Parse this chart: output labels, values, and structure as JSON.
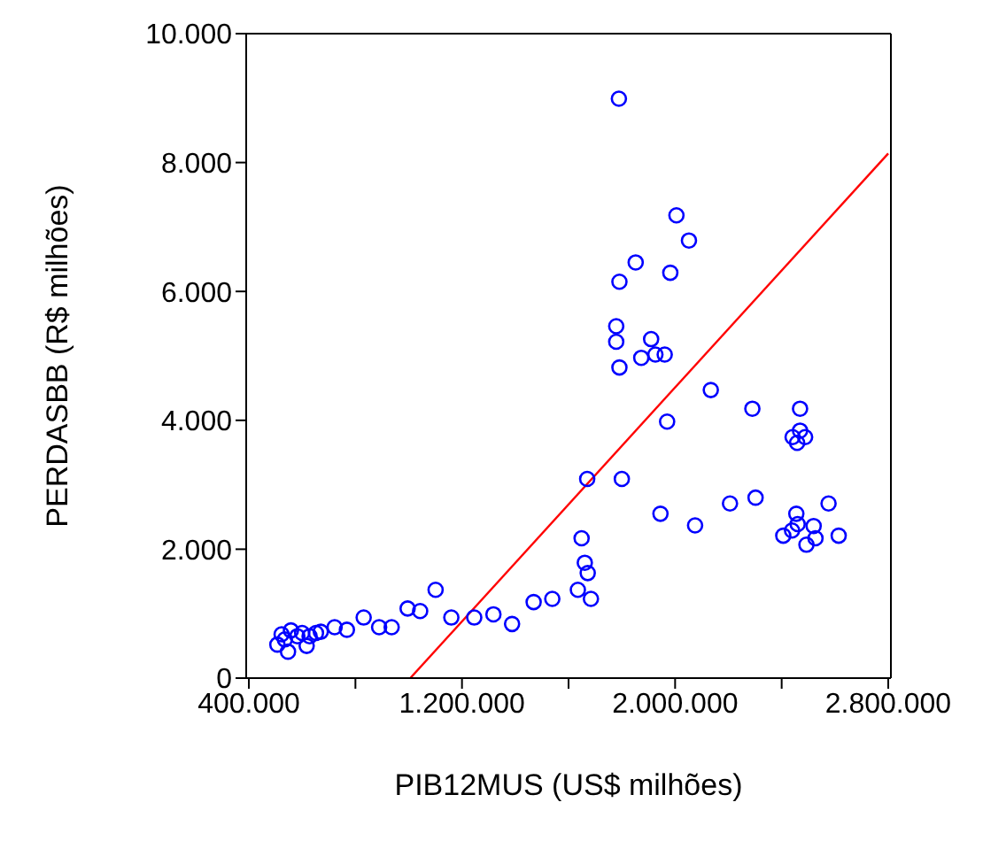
{
  "chart_data": {
    "type": "scatter",
    "xlabel": "PIB12MUS (US$ milhões)",
    "ylabel": "PERDASBB (R$ milhões)",
    "xlim": [
      390000,
      2810000
    ],
    "ylim": [
      0,
      10000
    ],
    "xticks": [
      {
        "value": 400000,
        "label": "400.000"
      },
      {
        "value": 800000,
        "label": null
      },
      {
        "value": 1200000,
        "label": "1.200.000"
      },
      {
        "value": 1600000,
        "label": null
      },
      {
        "value": 2000000,
        "label": "2.000.000"
      },
      {
        "value": 2400000,
        "label": null
      },
      {
        "value": 2800000,
        "label": "2.800.000"
      }
    ],
    "yticks": [
      0,
      {
        "value": 2000,
        "label": "2.000"
      },
      {
        "value": 4000,
        "label": "4.000"
      },
      {
        "value": 6000,
        "label": "6.000"
      },
      {
        "value": 8000,
        "label": "8.000"
      },
      {
        "value": 10000,
        "label": "10.000"
      }
    ],
    "marker": "circle",
    "legend": false,
    "series": [
      {
        "color": "#0000ff",
        "x": [
          507000,
          523000,
          547000,
          558000,
          535000,
          582000,
          600000,
          617000,
          628000,
          652000,
          670000,
          722000,
          768000,
          831000,
          889000,
          936000,
          996000,
          1043000,
          1101000,
          1160000,
          1246000,
          1318000,
          1388000,
          1469000,
          1539000,
          1635000,
          1649000,
          1661000,
          1672000,
          1684000,
          1670000,
          1789000,
          1791000,
          1779000,
          1779000,
          1791000,
          1800000,
          1852000,
          1873000,
          1910000,
          1926000,
          1961000,
          1982000,
          1970000,
          1945000,
          2005000,
          2052000,
          2075000,
          2134000,
          2206000,
          2290000,
          2302000,
          2406000,
          2439000,
          2455000,
          2469000,
          2441000,
          2458000,
          2469000,
          2488000,
          2460000,
          2493000,
          2520000,
          2527000,
          2576000,
          2614000
        ],
        "values": [
          520,
          680,
          410,
          740,
          600,
          650,
          700,
          500,
          650,
          700,
          720,
          790,
          750,
          940,
          790,
          790,
          1080,
          1040,
          1370,
          940,
          940,
          990,
          840,
          1180,
          1230,
          1370,
          2170,
          1790,
          1630,
          1230,
          3090,
          8990,
          6150,
          5460,
          5220,
          4820,
          3090,
          6450,
          4970,
          5260,
          5020,
          5020,
          6290,
          3980,
          2550,
          7180,
          6790,
          2370,
          4470,
          2710,
          4180,
          2800,
          2210,
          2290,
          2550,
          4180,
          3740,
          3650,
          3840,
          3740,
          2390,
          2070,
          2360,
          2170,
          2710,
          2210
        ]
      },
      {
        "type": "line",
        "color": "#ff0000",
        "marker": "none",
        "x": [
          1006000,
          2800000
        ],
        "values": [
          0,
          8140
        ]
      }
    ]
  }
}
